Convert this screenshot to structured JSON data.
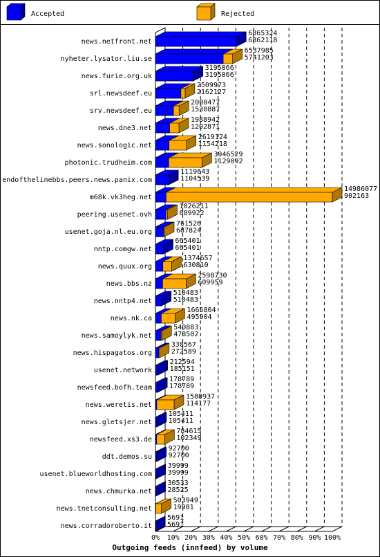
{
  "chart_data": {
    "type": "bar3d-horizontal",
    "title": "Outgoing feeds (innfeed) by volume",
    "categories": [
      "news.netfront.net",
      "nyheter.lysator.liu.se",
      "news.furie.org.uk",
      "srl.newsdeef.eu",
      "srv.newsdeef.eu",
      "news.dne3.net",
      "news.sonologic.net",
      "photonic.trudheim.com",
      "endofthelinebbs.peers.news.panix.com",
      "m68k.vk3heg.net",
      "peering.usenet.ovh",
      "usenet.goja.nl.eu.org",
      "nntp.comgw.net",
      "news.quux.org",
      "news.bbs.nz",
      "news.nntp4.net",
      "news.nk.ca",
      "news.samoylyk.net",
      "news.hispagatos.org",
      "usenet.network",
      "newsfeed.bofh.team",
      "news.weretis.net",
      "news.gletsjer.net",
      "newsfeed.xs3.de",
      "ddt.demos.su",
      "usenet.blueworldhosting.com",
      "news.chmurka.net",
      "news.tnetconsulting.net",
      "news.corradoroberto.it"
    ],
    "series": [
      {
        "name": "Accepted",
        "color": "#0000ff",
        "side_color": "#0000a0",
        "values": [
          6862118,
          5741203,
          3195066,
          2162127,
          1530887,
          1202871,
          1154218,
          1129092,
          1104539,
          902163,
          889922,
          687824,
          665401,
          630810,
          609959,
          510483,
          495904,
          478502,
          272589,
          185151,
          178789,
          114177,
          105411,
          102349,
          92700,
          39999,
          28525,
          19981,
          5691
        ]
      },
      {
        "name": "Rejected",
        "color": "#ffaa00",
        "side_color": "#b07800",
        "totals": [
          6865324,
          6537985,
          3195066,
          2509973,
          2000477,
          1988942,
          2619124,
          3946529,
          1119643,
          14986077,
          1026211,
          761526,
          665401,
          1374657,
          2598730,
          510483,
          1665804,
          540883,
          338567,
          212594,
          178789,
          1580937,
          105411,
          784615,
          92700,
          39999,
          30533,
          503949,
          5691
        ]
      }
    ],
    "xlim": [
      0,
      14986077
    ],
    "xticks": [
      {
        "value": 0,
        "label": "0%"
      },
      {
        "value": 1498607.7,
        "label": "10%"
      },
      {
        "value": 2997215.4,
        "label": "20%"
      },
      {
        "value": 4495823.1,
        "label": "30%"
      },
      {
        "value": 5994430.8,
        "label": "40%"
      },
      {
        "value": 7493038.5,
        "label": "50%"
      },
      {
        "value": 8991646.2,
        "label": "60%"
      },
      {
        "value": 10490253.9,
        "label": "70%"
      },
      {
        "value": 11988861.6,
        "label": "80%"
      },
      {
        "value": 13487469.3,
        "label": "90%"
      },
      {
        "value": 14986077,
        "label": "100%"
      }
    ],
    "grid": true
  }
}
